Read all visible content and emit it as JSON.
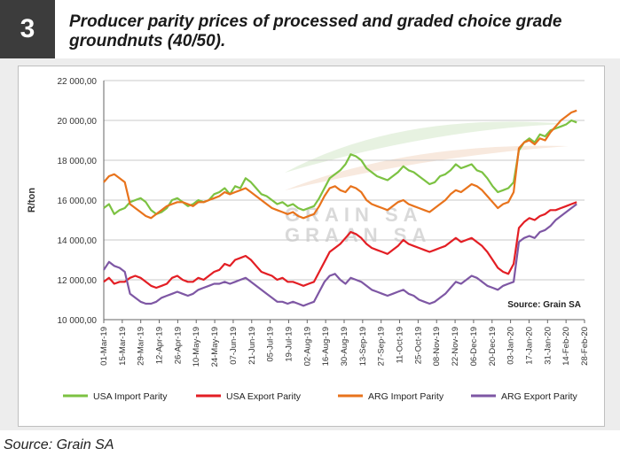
{
  "header": {
    "number": "3",
    "title": "Producer parity prices of processed and graded choice grade groundnuts (40/50)."
  },
  "footer": {
    "source": "Source: Grain SA"
  },
  "chart_data": {
    "type": "line",
    "ylabel": "R/ton",
    "ylim": [
      10000,
      22000
    ],
    "yticks": [
      10000,
      12000,
      14000,
      16000,
      18000,
      20000,
      22000
    ],
    "ytick_labels": [
      "10 000,00",
      "12 000,00",
      "14 000,00",
      "16 000,00",
      "18 000,00",
      "20 000,00",
      "22 000,00"
    ],
    "x_tick_labels": [
      "01-Mar-19",
      "15-Mar-19",
      "29-Mar-19",
      "12-Apr-19",
      "26-Apr-19",
      "10-May-19",
      "24-May-19",
      "07-Jun-19",
      "21-Jun-19",
      "05-Jul-19",
      "19-Jul-19",
      "02-Aug-19",
      "16-Aug-19",
      "30-Aug-19",
      "13-Sep-19",
      "27-Sep-19",
      "11-Oct-19",
      "25-Oct-19",
      "08-Nov-19",
      "22-Nov-19",
      "06-Dec-19",
      "20-Dec-19",
      "03-Jan-20",
      "17-Jan-20",
      "31-Jan-20",
      "14-Feb-20",
      "28-Feb-20"
    ],
    "annotation": "Source: Grain SA",
    "watermark": [
      "GRAIN SA",
      "GRAAN SA"
    ],
    "legend_position": "bottom",
    "series": [
      {
        "name": "USA Import Parity",
        "color": "#7cc242",
        "values": [
          15600,
          15800,
          15300,
          15500,
          15600,
          15900,
          16000,
          16100,
          15900,
          15500,
          15300,
          15400,
          15600,
          16000,
          16100,
          15900,
          15700,
          15800,
          16000,
          15900,
          16000,
          16300,
          16400,
          16600,
          16300,
          16700,
          16600,
          17100,
          16900,
          16600,
          16300,
          16200,
          16000,
          15800,
          15900,
          15700,
          15800,
          15600,
          15500,
          15600,
          15700,
          16100,
          16600,
          17100,
          17300,
          17500,
          17800,
          18300,
          18200,
          18000,
          17600,
          17400,
          17200,
          17100,
          17000,
          17200,
          17400,
          17700,
          17500,
          17400,
          17200,
          17000,
          16800,
          16900,
          17200,
          17300,
          17500,
          17800,
          17600,
          17700,
          17800,
          17500,
          17400,
          17100,
          16700,
          16400,
          16500,
          16600,
          16900,
          18500,
          18900,
          19100,
          18900,
          19300,
          19200,
          19500,
          19600,
          19700,
          19800,
          20000,
          19900
        ]
      },
      {
        "name": "USA Export Parity",
        "color": "#e31e24",
        "values": [
          11900,
          12100,
          11800,
          11900,
          11900,
          12100,
          12200,
          12100,
          11900,
          11700,
          11600,
          11700,
          11800,
          12100,
          12200,
          12000,
          11900,
          11900,
          12100,
          12000,
          12200,
          12400,
          12500,
          12800,
          12700,
          13000,
          13100,
          13200,
          13000,
          12700,
          12400,
          12300,
          12200,
          12000,
          12100,
          11900,
          11900,
          11800,
          11700,
          11800,
          11900,
          12400,
          12900,
          13400,
          13600,
          13800,
          14100,
          14400,
          14300,
          14100,
          13800,
          13600,
          13500,
          13400,
          13300,
          13500,
          13700,
          14000,
          13800,
          13700,
          13600,
          13500,
          13400,
          13500,
          13600,
          13700,
          13900,
          14100,
          13900,
          14000,
          14100,
          13900,
          13700,
          13400,
          13000,
          12600,
          12400,
          12300,
          12800,
          14600,
          14900,
          15100,
          15000,
          15200,
          15300,
          15500,
          15500,
          15600,
          15700,
          15800,
          15900
        ]
      },
      {
        "name": "ARG Import Parity",
        "color": "#e8731c",
        "values": [
          16900,
          17200,
          17300,
          17100,
          16900,
          15800,
          15600,
          15400,
          15200,
          15100,
          15300,
          15500,
          15700,
          15800,
          15900,
          15900,
          15800,
          15700,
          15900,
          15900,
          16000,
          16100,
          16200,
          16400,
          16300,
          16400,
          16500,
          16600,
          16400,
          16200,
          16000,
          15800,
          15600,
          15500,
          15400,
          15300,
          15400,
          15200,
          15100,
          15200,
          15300,
          15700,
          16200,
          16600,
          16700,
          16500,
          16400,
          16700,
          16600,
          16400,
          16000,
          15800,
          15700,
          15600,
          15500,
          15700,
          15900,
          16000,
          15800,
          15700,
          15600,
          15500,
          15400,
          15600,
          15800,
          16000,
          16300,
          16500,
          16400,
          16600,
          16800,
          16700,
          16500,
          16200,
          15900,
          15600,
          15800,
          15900,
          16400,
          18600,
          18900,
          19000,
          18800,
          19100,
          19000,
          19400,
          19700,
          20000,
          20200,
          20400,
          20500
        ]
      },
      {
        "name": "ARG Export Parity",
        "color": "#7e57a4",
        "values": [
          12500,
          12900,
          12700,
          12600,
          12400,
          11300,
          11100,
          10900,
          10800,
          10800,
          10900,
          11100,
          11200,
          11300,
          11400,
          11300,
          11200,
          11300,
          11500,
          11600,
          11700,
          11800,
          11800,
          11900,
          11800,
          11900,
          12000,
          12100,
          11900,
          11700,
          11500,
          11300,
          11100,
          10900,
          10900,
          10800,
          10900,
          10800,
          10700,
          10800,
          10900,
          11400,
          11900,
          12200,
          12300,
          12000,
          11800,
          12100,
          12000,
          11900,
          11700,
          11500,
          11400,
          11300,
          11200,
          11300,
          11400,
          11500,
          11300,
          11200,
          11000,
          10900,
          10800,
          10900,
          11100,
          11300,
          11600,
          11900,
          11800,
          12000,
          12200,
          12100,
          11900,
          11700,
          11600,
          11500,
          11700,
          11800,
          11900,
          13900,
          14100,
          14200,
          14100,
          14400,
          14500,
          14700,
          15000,
          15200,
          15400,
          15600,
          15800
        ]
      }
    ]
  }
}
